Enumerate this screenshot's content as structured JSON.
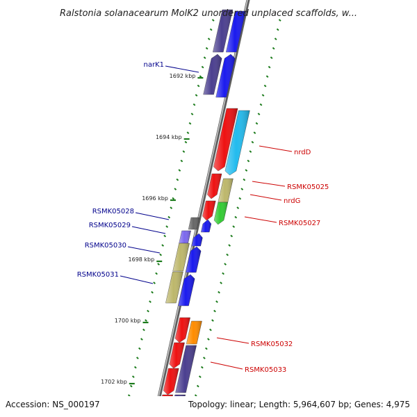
{
  "title": "Ralstonia solanacearum MolK2 unordered unplaced scaffolds, w...",
  "footer": {
    "accession": "Accession: NS_000197",
    "summary": "Topology: linear; Length: 5,964,607 bp; Genes: 4,975"
  },
  "colors": {
    "backbone": "#8a8a8a",
    "ticks": "#1a7a1a",
    "reverse_label": "#00008b",
    "forward_label": "#cc0000"
  },
  "scale": {
    "labels": [
      {
        "kbp": 1692,
        "text": "1692 kbp"
      },
      {
        "kbp": 1694,
        "text": "1694 kbp"
      },
      {
        "kbp": 1696,
        "text": "1696 kbp"
      },
      {
        "kbp": 1698,
        "text": "1698 kbp"
      },
      {
        "kbp": 1700,
        "text": "1700 kbp"
      },
      {
        "kbp": 1702,
        "text": "1702 kbp"
      }
    ]
  },
  "gene_labels": [
    {
      "id": "narK1",
      "text": "narK1",
      "strand": "reverse"
    },
    {
      "id": "nrdD",
      "text": "nrdD",
      "strand": "forward"
    },
    {
      "id": "RSMK05025",
      "text": "RSMK05025",
      "strand": "forward"
    },
    {
      "id": "nrdG",
      "text": "nrdG",
      "strand": "forward"
    },
    {
      "id": "RSMK05027",
      "text": "RSMK05027",
      "strand": "forward"
    },
    {
      "id": "RSMK05028",
      "text": "RSMK05028",
      "strand": "reverse"
    },
    {
      "id": "RSMK05029",
      "text": "RSMK05029",
      "strand": "reverse"
    },
    {
      "id": "RSMK05030",
      "text": "RSMK05030",
      "strand": "reverse"
    },
    {
      "id": "RSMK05031",
      "text": "RSMK05031",
      "strand": "reverse"
    },
    {
      "id": "RSMK05032",
      "text": "RSMK05032",
      "strand": "forward"
    },
    {
      "id": "RSMK05033",
      "text": "RSMK05033",
      "strand": "forward"
    }
  ]
}
